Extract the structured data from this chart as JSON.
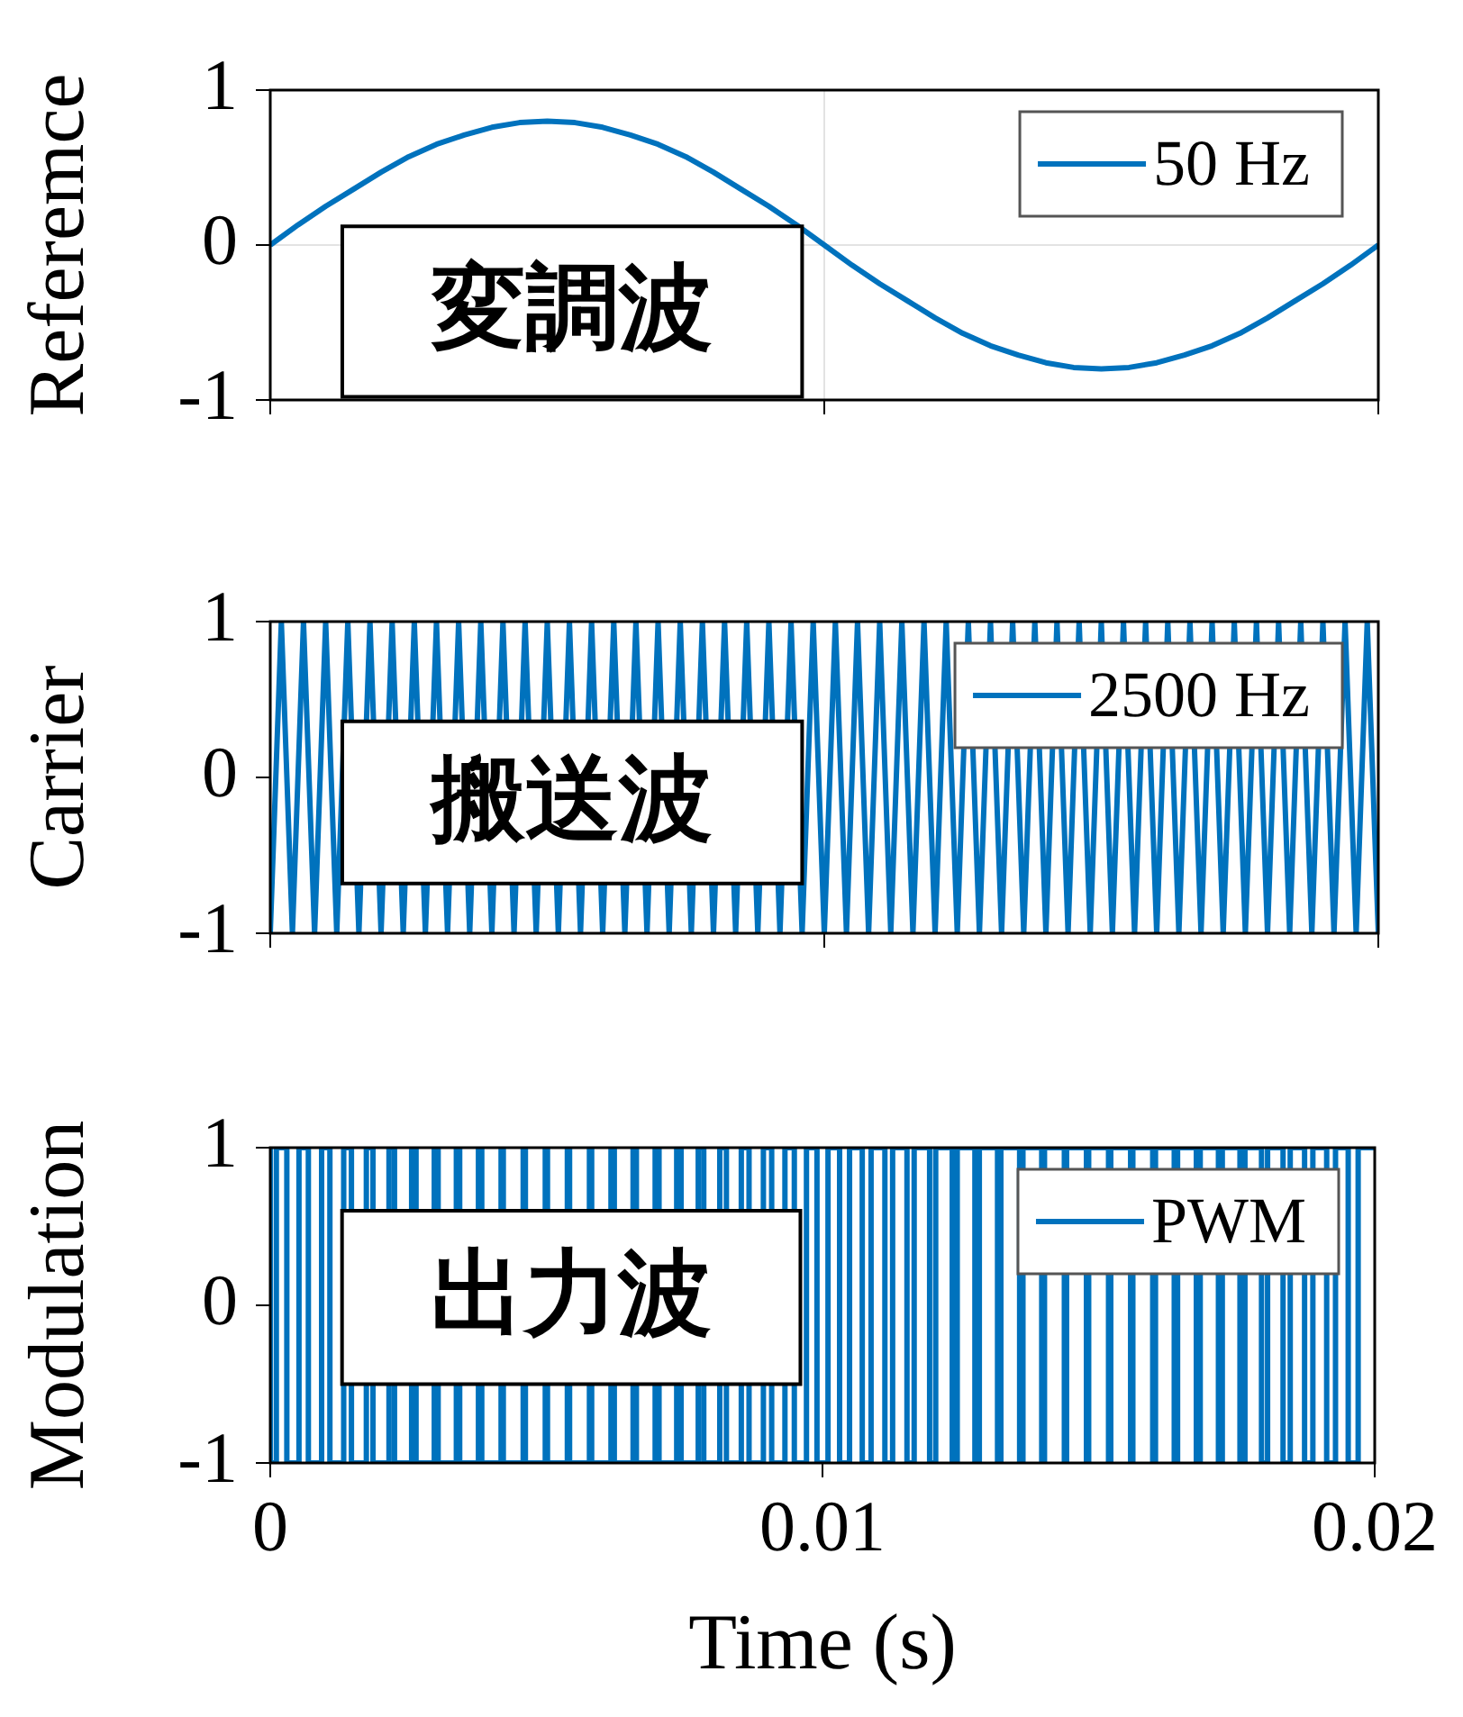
{
  "chart_data": [
    {
      "type": "line",
      "ylabel": "Referemce",
      "xlim": [
        0,
        0.02
      ],
      "xticks": [
        0,
        0.01,
        0.02
      ],
      "ylim": [
        -1,
        1
      ],
      "yticks": [
        -1,
        0,
        1
      ],
      "grid": true,
      "legend": "top right",
      "tick_labels": "y",
      "annotations": [
        "変調波"
      ],
      "x": [
        0,
        0.0005,
        0.001,
        0.0015,
        0.002,
        0.0025,
        0.003,
        0.0035,
        0.004,
        0.0045,
        0.005,
        0.0055,
        0.006,
        0.0065,
        0.007,
        0.0075,
        0.008,
        0.0085,
        0.009,
        0.0095,
        0.01,
        0.0105,
        0.011,
        0.0115,
        0.012,
        0.0125,
        0.013,
        0.0135,
        0.014,
        0.0145,
        0.015,
        0.0155,
        0.016,
        0.0165,
        0.017,
        0.0175,
        0.018,
        0.0185,
        0.019,
        0.0195,
        0.02
      ],
      "series": [
        {
          "name": "50 Hz",
          "color": "#0072bd",
          "values": [
            0,
            0.13,
            0.25,
            0.36,
            0.47,
            0.57,
            0.65,
            0.71,
            0.76,
            0.79,
            0.8,
            0.79,
            0.76,
            0.71,
            0.65,
            0.57,
            0.47,
            0.36,
            0.25,
            0.13,
            0,
            -0.13,
            -0.25,
            -0.36,
            -0.47,
            -0.57,
            -0.65,
            -0.71,
            -0.76,
            -0.79,
            -0.8,
            -0.79,
            -0.76,
            -0.71,
            -0.65,
            -0.57,
            -0.47,
            -0.36,
            -0.25,
            -0.13,
            0
          ]
        }
      ]
    },
    {
      "type": "line",
      "ylabel": "Carrier",
      "xlim": [
        0,
        0.02
      ],
      "xticks": [
        0,
        0.01,
        0.02
      ],
      "ylim": [
        -1,
        1
      ],
      "yticks": [
        -1,
        0,
        1
      ],
      "legend": "top right",
      "tick_labels": "y",
      "annotations": [
        "搬送波"
      ],
      "x": [
        0,
        0.0002,
        0.0004,
        0.0006,
        0.0008,
        0.001,
        0.0012,
        0.0014,
        0.0016,
        0.0018,
        0.002,
        0.0022,
        0.0024,
        0.0026,
        0.0028,
        0.003,
        0.0032,
        0.0034,
        0.0036,
        0.0038,
        0.004,
        0.0042,
        0.0044,
        0.0046,
        0.0048,
        0.005,
        0.0052,
        0.0054,
        0.0056,
        0.0058,
        0.006,
        0.0062,
        0.0064,
        0.0066,
        0.0068,
        0.007,
        0.0072,
        0.0074,
        0.0076,
        0.0078,
        0.008,
        0.0082,
        0.0084,
        0.0086,
        0.0088,
        0.009,
        0.0092,
        0.0094,
        0.0096,
        0.0098,
        0.01,
        0.0102,
        0.0104,
        0.0106,
        0.0108,
        0.011,
        0.0112,
        0.0114,
        0.0116,
        0.0118,
        0.012,
        0.0122,
        0.0124,
        0.0126,
        0.0128,
        0.013,
        0.0132,
        0.0134,
        0.0136,
        0.0138,
        0.014,
        0.0142,
        0.0144,
        0.0146,
        0.0148,
        0.015,
        0.0152,
        0.0154,
        0.0156,
        0.0158,
        0.016,
        0.0162,
        0.0164,
        0.0166,
        0.0168,
        0.017,
        0.0172,
        0.0174,
        0.0176,
        0.0178,
        0.018,
        0.0182,
        0.0184,
        0.0186,
        0.0188,
        0.019,
        0.0192,
        0.0194,
        0.0196,
        0.0198,
        0.02
      ],
      "series": [
        {
          "name": "2500 Hz",
          "color": "#0072bd",
          "values": [
            -1,
            1,
            -1,
            1,
            -1,
            1,
            -1,
            1,
            -1,
            1,
            -1,
            1,
            -1,
            1,
            -1,
            1,
            -1,
            1,
            -1,
            1,
            -1,
            1,
            -1,
            1,
            -1,
            1,
            -1,
            1,
            -1,
            1,
            -1,
            1,
            -1,
            1,
            -1,
            1,
            -1,
            1,
            -1,
            1,
            -1,
            1,
            -1,
            1,
            -1,
            1,
            -1,
            1,
            -1,
            1,
            -1,
            1,
            -1,
            1,
            -1,
            1,
            -1,
            1,
            -1,
            1,
            -1,
            1,
            -1,
            1,
            -1,
            1,
            -1,
            1,
            -1,
            1,
            -1,
            1,
            -1,
            1,
            -1,
            1,
            -1,
            1,
            -1,
            1,
            -1,
            1,
            -1,
            1,
            -1,
            1,
            -1,
            1,
            -1,
            1,
            -1,
            1,
            -1,
            1,
            -1,
            1,
            -1,
            1,
            -1,
            1,
            -1
          ]
        }
      ]
    },
    {
      "type": "step",
      "ylabel": "Modulation",
      "xlabel": "Time (s)",
      "xlim": [
        0,
        0.02
      ],
      "xticks": [
        0,
        0.01,
        0.02
      ],
      "ylim": [
        -1,
        1
      ],
      "yticks": [
        -1,
        0,
        1
      ],
      "legend": "top right",
      "annotations": [
        "出力波"
      ],
      "x": [
        0,
        0.00011,
        0.0003,
        0.00052,
        0.00069,
        0.00093,
        0.00108,
        0.00133,
        0.00147,
        0.00174,
        0.00186,
        0.00215,
        0.00225,
        0.00256,
        0.00264,
        0.00297,
        0.00304,
        0.00337,
        0.00343,
        0.00377,
        0.00383,
        0.00418,
        0.00422,
        0.00458,
        0.00462,
        0.00498,
        0.00502,
        0.00538,
        0.00542,
        0.00578,
        0.00582,
        0.00617,
        0.00623,
        0.00657,
        0.00663,
        0.00697,
        0.00704,
        0.00736,
        0.00744,
        0.00775,
        0.00785,
        0.00814,
        0.00826,
        0.00853,
        0.00867,
        0.00893,
        0.00908,
        0.00932,
        0.00949,
        0.00971,
        0.0099,
        0.0101,
        0.01031,
        0.01049,
        0.01072,
        0.01088,
        0.01113,
        0.01127,
        0.01153,
        0.01166,
        0.01194,
        0.01205,
        0.01235,
        0.01244,
        0.01276,
        0.01284,
        0.01317,
        0.01323,
        0.01357,
        0.01363,
        0.01397,
        0.01402,
        0.01438,
        0.01442,
        0.01478,
        0.01482,
        0.01518,
        0.01522,
        0.01558,
        0.01562,
        0.01598,
        0.01603,
        0.01637,
        0.01643,
        0.01677,
        0.01684,
        0.01717,
        0.01724,
        0.01756,
        0.01765,
        0.01795,
        0.01806,
        0.01834,
        0.01847,
        0.01873,
        0.01888,
        0.01913,
        0.01929,
        0.01952,
        0.0197,
        0.01991,
        0.02
      ],
      "series": [
        {
          "name": "PWM",
          "color": "#0072bd",
          "values": [
            1,
            -1,
            1,
            -1,
            1,
            -1,
            1,
            -1,
            1,
            -1,
            1,
            -1,
            1,
            -1,
            1,
            -1,
            1,
            -1,
            1,
            -1,
            1,
            -1,
            1,
            -1,
            1,
            -1,
            1,
            -1,
            1,
            -1,
            1,
            -1,
            1,
            -1,
            1,
            -1,
            1,
            -1,
            1,
            -1,
            1,
            -1,
            1,
            -1,
            1,
            -1,
            1,
            -1,
            1,
            -1,
            1,
            -1,
            1,
            -1,
            1,
            -1,
            1,
            -1,
            1,
            -1,
            1,
            -1,
            1,
            -1,
            1,
            -1,
            1,
            -1,
            1,
            -1,
            1,
            -1,
            1,
            -1,
            1,
            -1,
            1,
            -1,
            1,
            -1,
            1,
            -1,
            1,
            -1,
            1,
            -1,
            1,
            -1,
            1,
            -1,
            1,
            -1,
            1,
            -1,
            1,
            -1,
            1,
            -1,
            1,
            -1,
            1,
            1
          ]
        }
      ]
    }
  ]
}
